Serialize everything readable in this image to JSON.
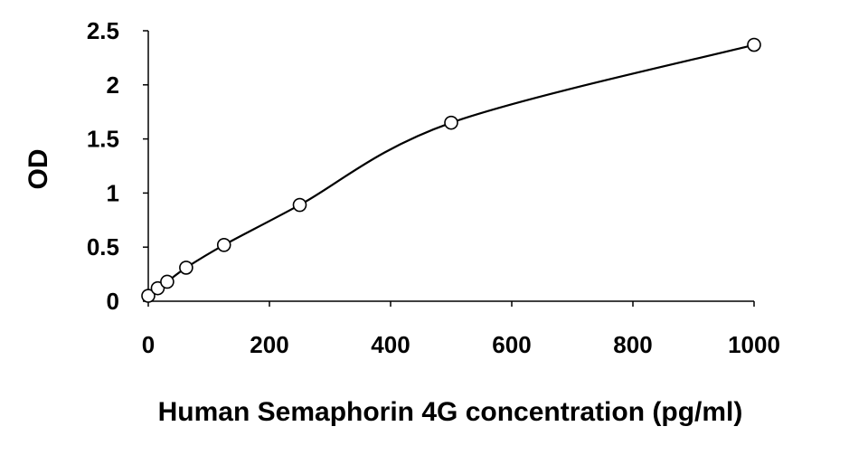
{
  "chart_data": {
    "type": "scatter",
    "title": "",
    "xlabel": "Human Semaphorin 4G concentration (pg/ml)",
    "ylabel": "OD",
    "xlim": [
      0,
      1000
    ],
    "ylim": [
      0,
      2.5
    ],
    "x_ticks": [
      0,
      200,
      400,
      600,
      800,
      1000
    ],
    "y_ticks": [
      0,
      0.5,
      1,
      1.5,
      2,
      2.5
    ],
    "x_tick_labels": [
      "0",
      "200",
      "400",
      "600",
      "800",
      "1000"
    ],
    "y_tick_labels": [
      "0",
      "0.5",
      "1",
      "1.5",
      "2",
      "2.5"
    ],
    "grid": false,
    "legend": "none",
    "series": [
      {
        "marker": "open-circle",
        "trendline": "polynomial",
        "color": "#000000",
        "points": [
          {
            "x": 0,
            "y": 0.05
          },
          {
            "x": 15.6,
            "y": 0.12
          },
          {
            "x": 31.2,
            "y": 0.18
          },
          {
            "x": 62.5,
            "y": 0.31
          },
          {
            "x": 125,
            "y": 0.52
          },
          {
            "x": 250,
            "y": 0.89
          },
          {
            "x": 500,
            "y": 1.65
          },
          {
            "x": 1000,
            "y": 2.37
          }
        ]
      }
    ]
  }
}
